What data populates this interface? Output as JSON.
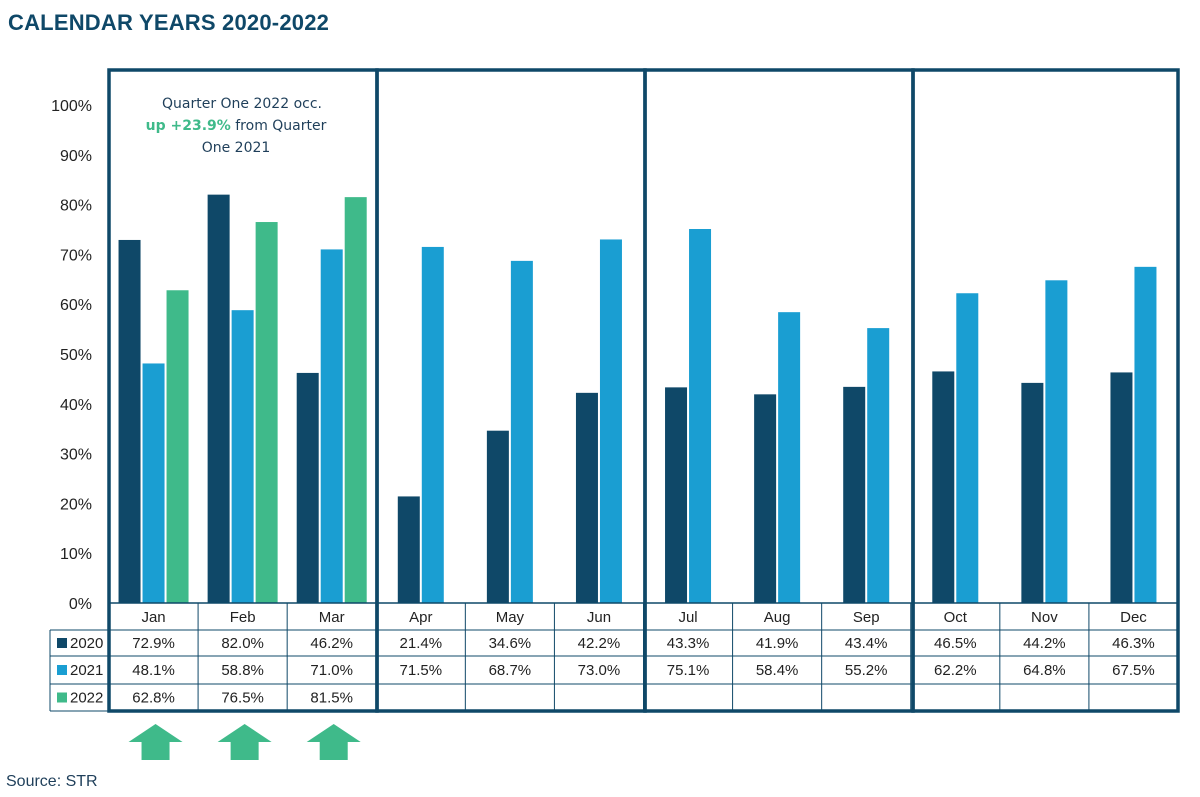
{
  "header": {
    "title": "CALENDAR YEARS 2020-2022"
  },
  "footer": {
    "source": "Source: STR"
  },
  "annotation": {
    "line1": "Quarter One 2022 occ.",
    "line2_highlight": "up +23.9%",
    "line2_rest": " from Quarter",
    "line3": "One 2021"
  },
  "colors": {
    "2020": "#0f4868",
    "2021": "#1a9ed2",
    "2022": "#3fba8a",
    "frame": "#0f4868",
    "arrow": "#3fba8a"
  },
  "chart_data": {
    "type": "bar",
    "categories": [
      "Jan",
      "Feb",
      "Mar",
      "Apr",
      "May",
      "Jun",
      "Jul",
      "Aug",
      "Sep",
      "Oct",
      "Nov",
      "Dec"
    ],
    "ylim": [
      0,
      100
    ],
    "yticks": [
      "0%",
      "10%",
      "20%",
      "30%",
      "40%",
      "50%",
      "60%",
      "70%",
      "80%",
      "90%",
      "100%"
    ],
    "series": [
      {
        "name": "2020",
        "values": [
          72.9,
          82.0,
          46.2,
          21.4,
          34.6,
          42.2,
          43.3,
          41.9,
          43.4,
          46.5,
          44.2,
          46.3
        ],
        "labels": [
          "72.9%",
          "82.0%",
          "46.2%",
          "21.4%",
          "34.6%",
          "42.2%",
          "43.3%",
          "41.9%",
          "43.4%",
          "46.5%",
          "44.2%",
          "46.3%"
        ]
      },
      {
        "name": "2021",
        "values": [
          48.1,
          58.8,
          71.0,
          71.5,
          68.7,
          73.0,
          75.1,
          58.4,
          55.2,
          62.2,
          64.8,
          67.5
        ],
        "labels": [
          "48.1%",
          "58.8%",
          "71.0%",
          "71.5%",
          "68.7%",
          "73.0%",
          "75.1%",
          "58.4%",
          "55.2%",
          "62.2%",
          "64.8%",
          "67.5%"
        ]
      },
      {
        "name": "2022",
        "values": [
          62.8,
          76.5,
          81.5,
          null,
          null,
          null,
          null,
          null,
          null,
          null,
          null,
          null
        ],
        "labels": [
          "62.8%",
          "76.5%",
          "81.5%",
          "",
          "",
          "",
          "",
          "",
          "",
          "",
          "",
          ""
        ]
      }
    ],
    "quarters": [
      "Q1",
      "Q2",
      "Q3",
      "Q4"
    ],
    "up_arrows_under": [
      "Jan",
      "Feb",
      "Mar"
    ]
  }
}
